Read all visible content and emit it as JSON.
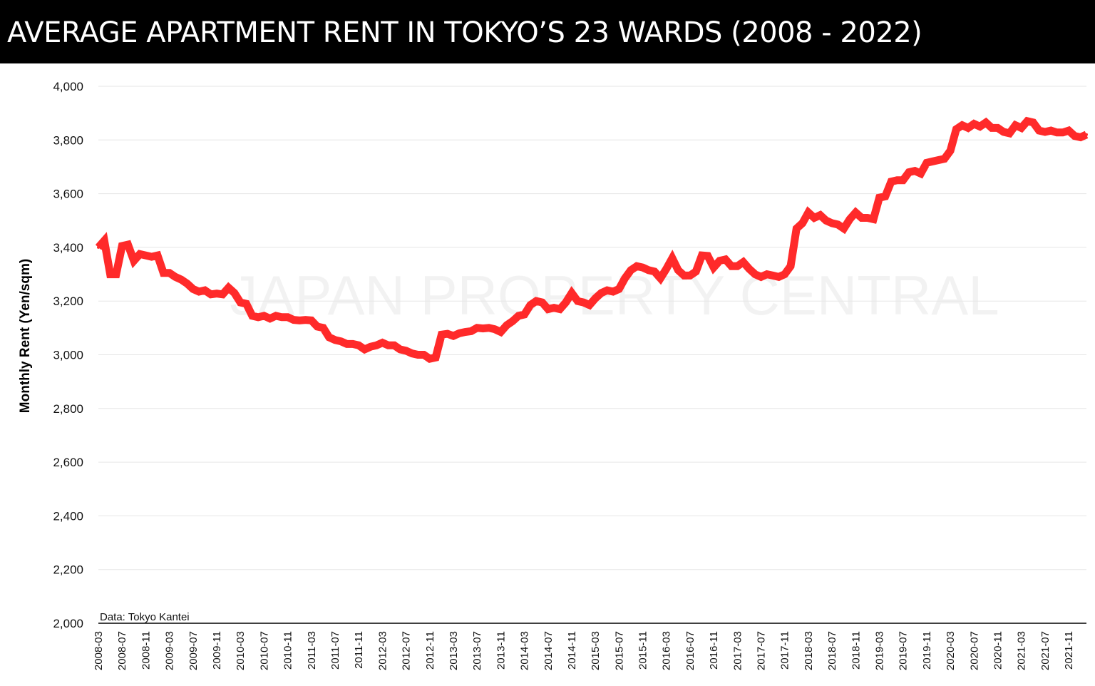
{
  "title": "AVERAGE APARTMENT RENT IN TOKYO’S 23 WARDS (2008 - 2022)",
  "watermark": "JAPAN PROPERTY CENTRAL",
  "source": "Data: Tokyo Kantei",
  "colors": {
    "line": "#ff2a2a",
    "title_bg": "#000000",
    "title_text": "#ffffff",
    "grid": "#e6e6e6",
    "axis": "#000000"
  },
  "chart_data": {
    "type": "line",
    "title": "AVERAGE APARTMENT RENT IN TOKYO’S 23 WARDS (2008 - 2022)",
    "xlabel": "",
    "ylabel": "Monthly Rent (Yen/sqm)",
    "ylim": [
      2000,
      4000
    ],
    "yticks": [
      2000,
      2200,
      2400,
      2600,
      2800,
      3000,
      3200,
      3400,
      3600,
      3800,
      4000
    ],
    "ytick_labels": [
      "2,000",
      "2,200",
      "2,400",
      "2,600",
      "2,800",
      "3,000",
      "3,200",
      "3,400",
      "3,600",
      "3,800",
      "4,000"
    ],
    "xtick_labels": [
      "2008-03",
      "2008-07",
      "2008-11",
      "2009-03",
      "2009-07",
      "2009-11",
      "2010-03",
      "2010-07",
      "2010-11",
      "2011-03",
      "2011-07",
      "2011-11",
      "2012-03",
      "2012-07",
      "2012-11",
      "2013-03",
      "2013-07",
      "2013-11",
      "2014-03",
      "2014-07",
      "2014-11",
      "2015-03",
      "2015-07",
      "2015-11",
      "2016-03",
      "2016-07",
      "2016-11",
      "2017-03",
      "2017-07",
      "2017-11",
      "2018-03",
      "2018-07",
      "2018-11",
      "2019-03",
      "2019-07",
      "2019-11",
      "2020-03",
      "2020-07",
      "2020-11",
      "2021-03",
      "2021-07",
      "2021-11"
    ],
    "grid": true,
    "legend": "none",
    "series": [
      {
        "name": "",
        "x_start": "2008-03",
        "x_step": "1 month",
        "values": [
          3400,
          3425,
          3300,
          3300,
          3405,
          3410,
          3350,
          3375,
          3370,
          3365,
          3370,
          3305,
          3305,
          3290,
          3280,
          3265,
          3245,
          3235,
          3240,
          3225,
          3228,
          3225,
          3250,
          3230,
          3195,
          3190,
          3145,
          3140,
          3145,
          3135,
          3145,
          3140,
          3140,
          3130,
          3128,
          3130,
          3128,
          3105,
          3100,
          3065,
          3055,
          3050,
          3040,
          3040,
          3035,
          3020,
          3030,
          3035,
          3045,
          3035,
          3035,
          3020,
          3015,
          3005,
          3000,
          3000,
          2985,
          2990,
          3075,
          3078,
          3070,
          3080,
          3085,
          3088,
          3100,
          3098,
          3100,
          3095,
          3085,
          3110,
          3125,
          3145,
          3150,
          3185,
          3200,
          3195,
          3170,
          3175,
          3170,
          3195,
          3230,
          3200,
          3195,
          3185,
          3210,
          3230,
          3240,
          3235,
          3245,
          3285,
          3315,
          3330,
          3325,
          3315,
          3310,
          3285,
          3320,
          3360,
          3315,
          3295,
          3295,
          3310,
          3370,
          3368,
          3325,
          3350,
          3355,
          3330,
          3330,
          3345,
          3320,
          3300,
          3290,
          3300,
          3295,
          3290,
          3300,
          3330,
          3470,
          3490,
          3530,
          3510,
          3520,
          3500,
          3490,
          3485,
          3470,
          3505,
          3530,
          3510,
          3510,
          3505,
          3585,
          3590,
          3645,
          3650,
          3650,
          3680,
          3685,
          3675,
          3715,
          3720,
          3725,
          3730,
          3760,
          3840,
          3855,
          3845,
          3860,
          3850,
          3865,
          3845,
          3845,
          3830,
          3825,
          3855,
          3845,
          3870,
          3865,
          3835,
          3830,
          3835,
          3828,
          3828,
          3835,
          3815,
          3810,
          3820
        ]
      }
    ]
  }
}
